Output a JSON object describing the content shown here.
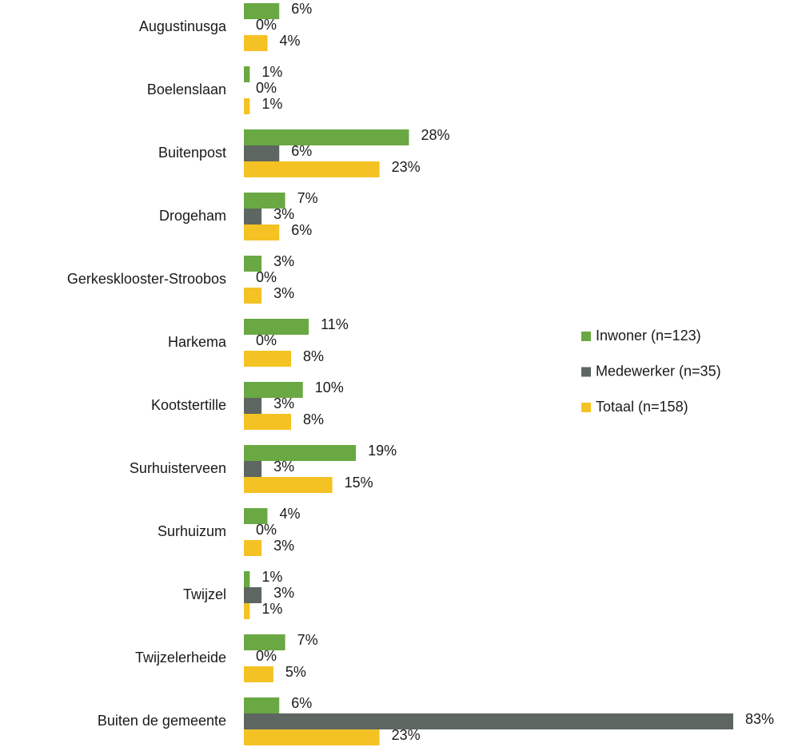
{
  "chart_data": {
    "type": "bar",
    "orientation": "horizontal",
    "legend": "right",
    "categories": [
      "Augustinusga",
      "Boelenslaan",
      "Buitenpost",
      "Drogeham",
      "Gerkesklooster-Stroobos",
      "Harkema",
      "Kootstertille",
      "Surhuisterveen",
      "Surhuizum",
      "Twijzel",
      "Twijzelerheide",
      "Buiten de gemeente"
    ],
    "series": [
      {
        "name": "Inwoner (n=123)",
        "color": "#6aa843",
        "values": [
          6,
          1,
          28,
          7,
          3,
          11,
          10,
          19,
          4,
          1,
          7,
          6
        ],
        "value_labels": [
          "6%",
          "1%",
          "28%",
          "7%",
          "3%",
          "11%",
          "10%",
          "19%",
          "4%",
          "1%",
          "7%",
          "6%"
        ]
      },
      {
        "name": "Medewerker (n=35)",
        "color": "#5e6661",
        "values": [
          0,
          0,
          6,
          3,
          0,
          0,
          3,
          3,
          0,
          3,
          0,
          83
        ],
        "value_labels": [
          "0%",
          "0%",
          "6%",
          "3%",
          "0%",
          "0%",
          "3%",
          "3%",
          "0%",
          "3%",
          "0%",
          "83%"
        ]
      },
      {
        "name": "Totaal (n=158)",
        "color": "#f5c224",
        "values": [
          4,
          1,
          23,
          6,
          3,
          8,
          8,
          15,
          3,
          1,
          5,
          23
        ],
        "value_labels": [
          "4%",
          "1%",
          "23%",
          "6%",
          "3%",
          "8%",
          "8%",
          "15%",
          "3%",
          "1%",
          "5%",
          "23%"
        ]
      }
    ]
  }
}
